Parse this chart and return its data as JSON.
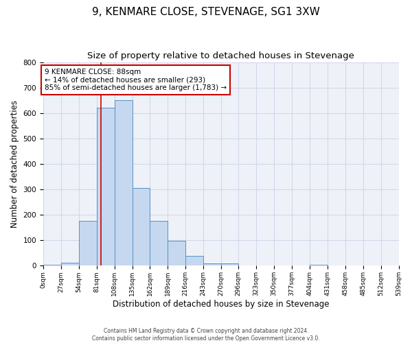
{
  "title": "9, KENMARE CLOSE, STEVENAGE, SG1 3XW",
  "subtitle": "Size of property relative to detached houses in Stevenage",
  "xlabel": "Distribution of detached houses by size in Stevenage",
  "ylabel": "Number of detached properties",
  "bin_edges": [
    0,
    27,
    54,
    81,
    108,
    135,
    162,
    189,
    216,
    243,
    270,
    296,
    323,
    350,
    377,
    404,
    431,
    458,
    485,
    512,
    539
  ],
  "bar_heights": [
    5,
    12,
    175,
    620,
    650,
    307,
    175,
    97,
    40,
    10,
    10,
    0,
    0,
    0,
    0,
    5,
    0,
    0,
    0,
    0
  ],
  "bar_color": "#c5d8f0",
  "bar_edge_color": "#5a8fc3",
  "property_value": 88,
  "vline_color": "#cc0000",
  "annotation_line1": "9 KENMARE CLOSE: 88sqm",
  "annotation_line2": "← 14% of detached houses are smaller (293)",
  "annotation_line3": "85% of semi-detached houses are larger (1,783) →",
  "annotation_box_edge": "#cc0000",
  "ylim": [
    0,
    800
  ],
  "yticks": [
    0,
    100,
    200,
    300,
    400,
    500,
    600,
    700,
    800
  ],
  "grid_color": "#d0d8e8",
  "footer_line1": "Contains HM Land Registry data © Crown copyright and database right 2024.",
  "footer_line2": "Contains public sector information licensed under the Open Government Licence v3.0.",
  "bg_color": "#eef2f8",
  "title_fontsize": 11,
  "subtitle_fontsize": 9.5
}
